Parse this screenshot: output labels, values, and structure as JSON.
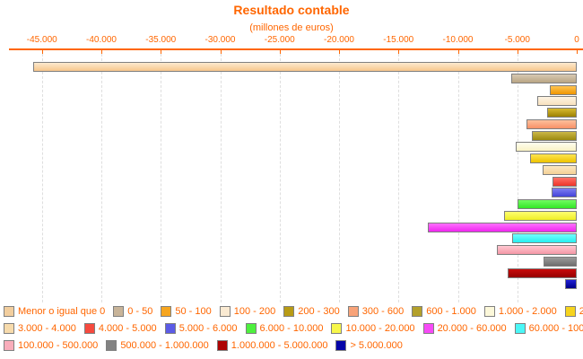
{
  "chart_data": {
    "type": "bar",
    "orientation": "horizontal",
    "title": "Resultado contable",
    "subtitle": "(millones de euros)",
    "unit": "millones de euros",
    "x_axis": {
      "tick_labels": [
        "-45.000",
        "-40.000",
        "-35.000",
        "-30.000",
        "-25.000",
        "-20.000",
        "-15.000",
        "-10.000",
        "-5.000",
        "0"
      ],
      "tick_values": [
        -45000,
        -40000,
        -35000,
        -30000,
        -25000,
        -20000,
        -15000,
        -10000,
        -5000,
        0
      ],
      "range": [
        -48000,
        0
      ],
      "grid": "dashed-vertical"
    },
    "legend_position": "bottom",
    "legend_row_counts": [
      9,
      7,
      4
    ],
    "bars": [
      {
        "label": "Menor o igual que 0",
        "value": -45700,
        "swatch": "#F2CE9E",
        "grad_top": "#FDE9CE",
        "grad_bottom": "#F7C68C"
      },
      {
        "label": "0 - 50",
        "value": -5500,
        "swatch": "#C8B499",
        "grad_top": "#D7C9B3",
        "grad_bottom": "#B9A584"
      },
      {
        "label": "50 - 100",
        "value": -2300,
        "swatch": "#F6A51F",
        "grad_top": "#FFC451",
        "grad_bottom": "#EE9503"
      },
      {
        "label": "100 - 200",
        "value": -3300,
        "swatch": "#FAEAD2",
        "grad_top": "#FDF3E3",
        "grad_bottom": "#F8E1BE"
      },
      {
        "label": "200 - 300",
        "value": -2500,
        "swatch": "#B89B15",
        "grad_top": "#D7B92F",
        "grad_bottom": "#9C8103"
      },
      {
        "label": "300 - 600",
        "value": -4200,
        "swatch": "#F8A379",
        "grad_top": "#FEC09C",
        "grad_bottom": "#F79167"
      },
      {
        "label": "600 - 1.000",
        "value": -3800,
        "swatch": "#B3A02B",
        "grad_top": "#CBB747",
        "grad_bottom": "#9B890F"
      },
      {
        "label": "1.000 - 2.000",
        "value": -5100,
        "swatch": "#FCF8DA",
        "grad_top": "#FFFEEF",
        "grad_bottom": "#F9F2C5"
      },
      {
        "label": "2.000 - 3.000",
        "value": -3900,
        "swatch": "#F6D41E",
        "grad_top": "#FEE552",
        "grad_bottom": "#EEC301"
      },
      {
        "label": "3.000 - 4.000",
        "value": -2900,
        "swatch": "#F7DBAC",
        "grad_top": "#FBE7C2",
        "grad_bottom": "#F4D096"
      },
      {
        "label": "4.000 - 5.000",
        "value": -2000,
        "swatch": "#F64A3E",
        "grad_top": "#FE7166",
        "grad_bottom": "#EE352A"
      },
      {
        "label": "5.000 - 6.000",
        "value": -2100,
        "swatch": "#5B5BE6",
        "grad_top": "#7E7EF1",
        "grad_bottom": "#4343D9"
      },
      {
        "label": "6.000 - 10.000",
        "value": -5000,
        "swatch": "#4DF03E",
        "grad_top": "#71FB61",
        "grad_bottom": "#32E626"
      },
      {
        "label": "10.000 - 20.000",
        "value": -6100,
        "swatch": "#F7F74A",
        "grad_top": "#FEFE71",
        "grad_bottom": "#EFEF26"
      },
      {
        "label": "20.000 - 60.000",
        "value": -12500,
        "swatch": "#F74AF7",
        "grad_top": "#FE71FE",
        "grad_bottom": "#EF26EF"
      },
      {
        "label": "60.000 - 100.000",
        "value": -5400,
        "swatch": "#4AF7F7",
        "grad_top": "#71FEFE",
        "grad_bottom": "#26EFEF"
      },
      {
        "label": "100.000 - 500.000",
        "value": -6700,
        "swatch": "#F9ADBB",
        "grad_top": "#FFC8D1",
        "grad_bottom": "#F497A6"
      },
      {
        "label": "500.000 - 1.000.000",
        "value": -2800,
        "swatch": "#828282",
        "grad_top": "#9A9A9A",
        "grad_bottom": "#6E6E6E"
      },
      {
        "label": "1.000.000 - 5.000.000",
        "value": -5800,
        "swatch": "#AD0404",
        "grad_top": "#C90B0B",
        "grad_bottom": "#950000"
      },
      {
        "label": "> 5.000.000",
        "value": -1000,
        "swatch": "#0404A8",
        "grad_top": "#2121D6",
        "grad_bottom": "#000089"
      }
    ],
    "colors": {
      "accent_text": "#FF6600",
      "axis_line": "#FF6600",
      "gridline": "#DEDEDE",
      "bar_border": "#7F7F7F",
      "background": "#FFFFFF"
    }
  }
}
